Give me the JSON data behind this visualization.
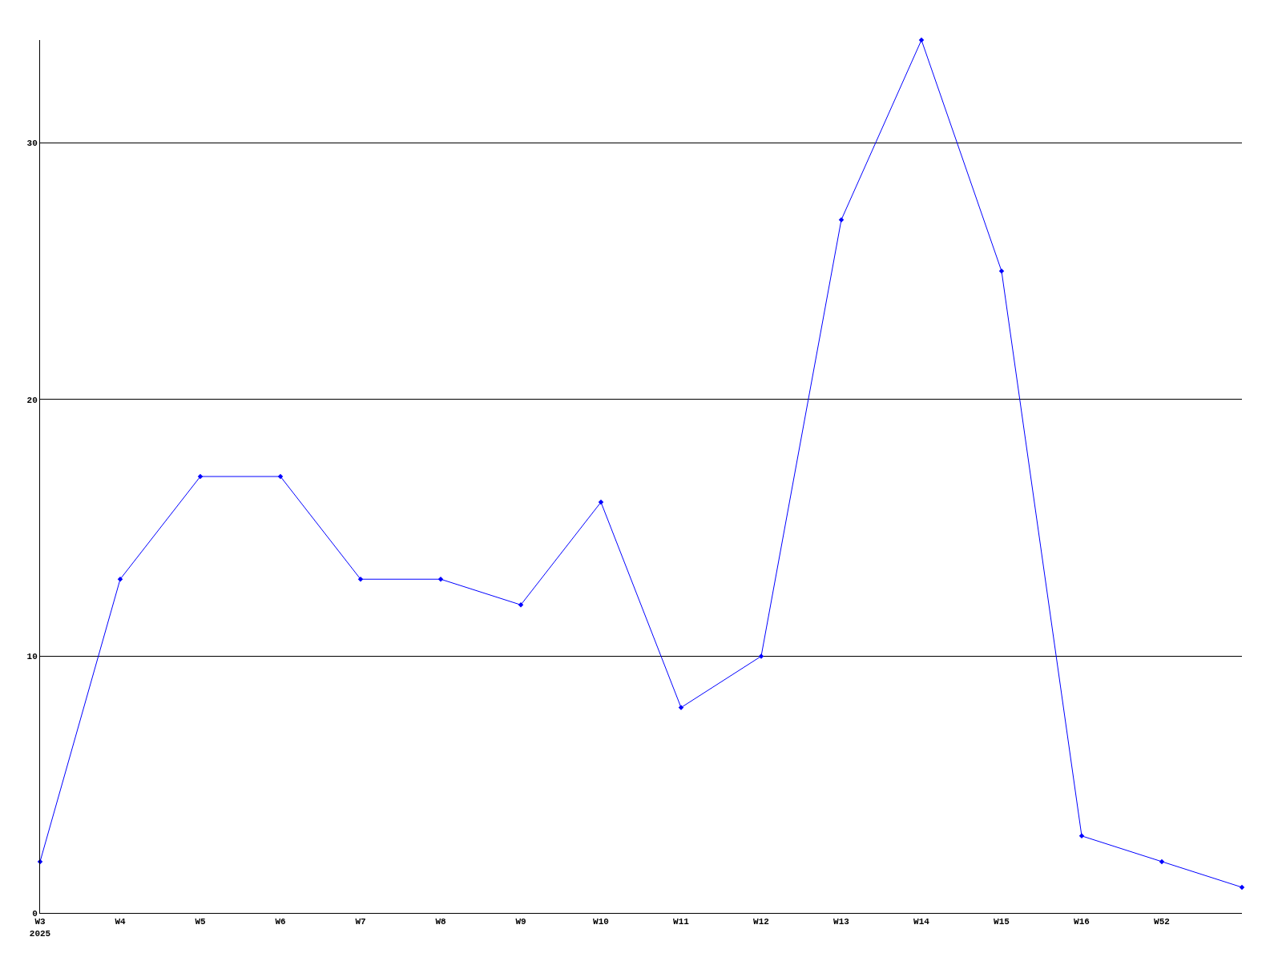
{
  "chart_data": {
    "type": "line",
    "categories": [
      "W3\n2025",
      "W4",
      "W5",
      "W6",
      "W7",
      "W8",
      "W9",
      "W10",
      "W11",
      "W12",
      "W13",
      "W14",
      "W15",
      "W16",
      "W52",
      null
    ],
    "series": [
      {
        "color": "#0000ff",
        "values": [
          2,
          13,
          17,
          17,
          13,
          13,
          12,
          16,
          8,
          10,
          27,
          34,
          25,
          3,
          2,
          1
        ]
      }
    ],
    "ylim": [
      0,
      34
    ],
    "yticks": [
      0,
      10,
      20,
      30
    ],
    "grid": "y",
    "marker": "diamond",
    "line_style": "solid"
  }
}
